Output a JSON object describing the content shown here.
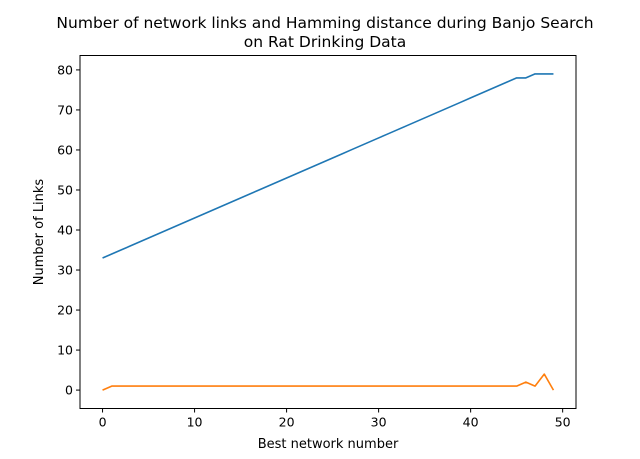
{
  "chart_data": {
    "type": "line",
    "title_lines": [
      "Number of network links and Hamming distance during Banjo Search",
      "on Rat Drinking Data"
    ],
    "xlabel": "Best network number",
    "ylabel": "Number of Links",
    "xlim": [
      -2.45,
      51.45
    ],
    "ylim": [
      -4.6,
      83.6
    ],
    "xticks": [
      0,
      10,
      20,
      30,
      40,
      50
    ],
    "yticks": [
      0,
      10,
      20,
      30,
      40,
      50,
      60,
      70,
      80
    ],
    "grid": false,
    "legend": "none",
    "series": [
      {
        "color": "#1f77b4",
        "x": [
          0,
          1,
          2,
          3,
          4,
          5,
          6,
          7,
          8,
          9,
          10,
          11,
          12,
          13,
          14,
          15,
          16,
          17,
          18,
          19,
          20,
          21,
          22,
          23,
          24,
          25,
          26,
          27,
          28,
          29,
          30,
          31,
          32,
          33,
          34,
          35,
          36,
          37,
          38,
          39,
          40,
          41,
          42,
          43,
          44,
          45,
          46,
          47,
          48,
          49
        ],
        "values": [
          33,
          34,
          35,
          36,
          37,
          38,
          39,
          40,
          41,
          42,
          43,
          44,
          45,
          46,
          47,
          48,
          49,
          50,
          51,
          52,
          53,
          54,
          55,
          56,
          57,
          58,
          59,
          60,
          61,
          62,
          63,
          64,
          65,
          66,
          67,
          68,
          69,
          70,
          71,
          72,
          73,
          74,
          75,
          76,
          77,
          78,
          78,
          79,
          79,
          79
        ]
      },
      {
        "color": "#ff7f0e",
        "x": [
          0,
          1,
          2,
          3,
          4,
          5,
          6,
          7,
          8,
          9,
          10,
          11,
          12,
          13,
          14,
          15,
          16,
          17,
          18,
          19,
          20,
          21,
          22,
          23,
          24,
          25,
          26,
          27,
          28,
          29,
          30,
          31,
          32,
          33,
          34,
          35,
          36,
          37,
          38,
          39,
          40,
          41,
          42,
          43,
          44,
          45,
          46,
          47,
          48,
          49
        ],
        "values": [
          0,
          1,
          1,
          1,
          1,
          1,
          1,
          1,
          1,
          1,
          1,
          1,
          1,
          1,
          1,
          1,
          1,
          1,
          1,
          1,
          1,
          1,
          1,
          1,
          1,
          1,
          1,
          1,
          1,
          1,
          1,
          1,
          1,
          1,
          1,
          1,
          1,
          1,
          1,
          1,
          1,
          1,
          1,
          1,
          1,
          1,
          2,
          1,
          4,
          0
        ]
      }
    ]
  }
}
